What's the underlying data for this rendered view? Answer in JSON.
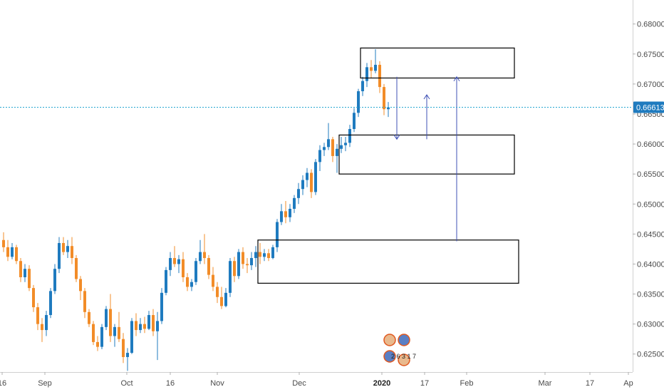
{
  "chart_data": {
    "type": "candlestick",
    "title": "",
    "xlabel": "",
    "ylabel": "",
    "ylim": [
      0.622,
      0.684
    ],
    "y_ticks": [
      "0.68000",
      "0.67500",
      "0.67000",
      "0.66500",
      "0.66000",
      "0.65500",
      "0.65000",
      "0.64500",
      "0.64000",
      "0.63500",
      "0.63000",
      "0.62500"
    ],
    "x_ticks": [
      "16",
      "Sep",
      "Oct",
      "16",
      "Nov",
      "Dec",
      "2020",
      "17",
      "Feb",
      "Mar",
      "17",
      "Ap"
    ],
    "current_price": 0.66613,
    "current_price_label": "0.66613",
    "colors": {
      "up": "#1f7bbf",
      "down": "#f28c28",
      "box": "#000000",
      "arrow": "#3f51b5",
      "price_line": "#26a6d1",
      "price_tag": "#1f7bbf"
    },
    "ohlc": [
      [
        0.644,
        0.6453,
        0.642,
        0.6428
      ],
      [
        0.6428,
        0.644,
        0.6405,
        0.6412
      ],
      [
        0.6412,
        0.6435,
        0.6408,
        0.6428
      ],
      [
        0.6428,
        0.6432,
        0.64,
        0.6405
      ],
      [
        0.6405,
        0.641,
        0.637,
        0.6378
      ],
      [
        0.6378,
        0.64,
        0.637,
        0.6392
      ],
      [
        0.6392,
        0.6398,
        0.6355,
        0.636
      ],
      [
        0.636,
        0.6365,
        0.632,
        0.6328
      ],
      [
        0.6328,
        0.6335,
        0.629,
        0.63
      ],
      [
        0.63,
        0.631,
        0.627,
        0.629
      ],
      [
        0.629,
        0.6322,
        0.628,
        0.6315
      ],
      [
        0.6315,
        0.636,
        0.631,
        0.6355
      ],
      [
        0.6355,
        0.64,
        0.635,
        0.6392
      ],
      [
        0.6392,
        0.6445,
        0.6385,
        0.6435
      ],
      [
        0.6435,
        0.6445,
        0.6415,
        0.642
      ],
      [
        0.642,
        0.644,
        0.641,
        0.643
      ],
      [
        0.643,
        0.6445,
        0.64,
        0.641
      ],
      [
        0.641,
        0.6415,
        0.637,
        0.6375
      ],
      [
        0.6375,
        0.638,
        0.634,
        0.6355
      ],
      [
        0.6355,
        0.636,
        0.631,
        0.632
      ],
      [
        0.632,
        0.6325,
        0.6295,
        0.63
      ],
      [
        0.63,
        0.6305,
        0.6265,
        0.627
      ],
      [
        0.627,
        0.628,
        0.6255,
        0.6262
      ],
      [
        0.6262,
        0.63,
        0.6258,
        0.6295
      ],
      [
        0.6295,
        0.633,
        0.629,
        0.6325
      ],
      [
        0.6325,
        0.635,
        0.627,
        0.628
      ],
      [
        0.628,
        0.63,
        0.6262,
        0.6295
      ],
      [
        0.6295,
        0.632,
        0.627,
        0.6275
      ],
      [
        0.6275,
        0.6285,
        0.6235,
        0.6245
      ],
      [
        0.6245,
        0.626,
        0.6222,
        0.6252
      ],
      [
        0.6252,
        0.631,
        0.625,
        0.6305
      ],
      [
        0.6305,
        0.6318,
        0.628,
        0.629
      ],
      [
        0.629,
        0.631,
        0.6285,
        0.63
      ],
      [
        0.63,
        0.6312,
        0.6285,
        0.6292
      ],
      [
        0.6292,
        0.6322,
        0.629,
        0.6315
      ],
      [
        0.6315,
        0.6325,
        0.628,
        0.6288
      ],
      [
        0.6288,
        0.632,
        0.624,
        0.6305
      ],
      [
        0.6305,
        0.636,
        0.63,
        0.6352
      ],
      [
        0.6352,
        0.6395,
        0.6348,
        0.639
      ],
      [
        0.639,
        0.642,
        0.638,
        0.641
      ],
      [
        0.641,
        0.643,
        0.6395,
        0.64
      ],
      [
        0.64,
        0.6415,
        0.6385,
        0.6408
      ],
      [
        0.6408,
        0.642,
        0.637,
        0.6378
      ],
      [
        0.6378,
        0.6385,
        0.6355,
        0.6362
      ],
      [
        0.6362,
        0.6375,
        0.6355,
        0.637
      ],
      [
        0.637,
        0.641,
        0.6365,
        0.6405
      ],
      [
        0.6405,
        0.644,
        0.64,
        0.642
      ],
      [
        0.642,
        0.645,
        0.64,
        0.641
      ],
      [
        0.641,
        0.6415,
        0.6375,
        0.6382
      ],
      [
        0.6382,
        0.6395,
        0.6355,
        0.6362
      ],
      [
        0.6362,
        0.637,
        0.6335,
        0.6345
      ],
      [
        0.6345,
        0.6362,
        0.6325,
        0.633
      ],
      [
        0.633,
        0.636,
        0.6328,
        0.6352
      ],
      [
        0.6352,
        0.641,
        0.6345,
        0.6405
      ],
      [
        0.6405,
        0.6412,
        0.637,
        0.638
      ],
      [
        0.638,
        0.6425,
        0.6375,
        0.642
      ],
      [
        0.642,
        0.6428,
        0.6392,
        0.64
      ],
      [
        0.64,
        0.641,
        0.6385,
        0.6398
      ],
      [
        0.6398,
        0.642,
        0.639,
        0.641
      ],
      [
        0.641,
        0.643,
        0.6395,
        0.642
      ],
      [
        0.642,
        0.6435,
        0.64,
        0.6412
      ],
      [
        0.6412,
        0.6425,
        0.6405,
        0.6418
      ],
      [
        0.6418,
        0.6425,
        0.6405,
        0.641
      ],
      [
        0.641,
        0.6432,
        0.6408,
        0.6428
      ],
      [
        0.6428,
        0.6475,
        0.642,
        0.647
      ],
      [
        0.647,
        0.65,
        0.6465,
        0.6488
      ],
      [
        0.6488,
        0.6505,
        0.6468,
        0.6478
      ],
      [
        0.6478,
        0.65,
        0.647,
        0.6492
      ],
      [
        0.6492,
        0.6515,
        0.6485,
        0.651
      ],
      [
        0.651,
        0.6535,
        0.65,
        0.6525
      ],
      [
        0.6525,
        0.6548,
        0.6515,
        0.654
      ],
      [
        0.654,
        0.656,
        0.6528,
        0.6552
      ],
      [
        0.6552,
        0.6558,
        0.651,
        0.652
      ],
      [
        0.652,
        0.6575,
        0.6515,
        0.657
      ],
      [
        0.657,
        0.6598,
        0.6555,
        0.659
      ],
      [
        0.659,
        0.6602,
        0.658,
        0.6595
      ],
      [
        0.6595,
        0.6635,
        0.659,
        0.6608
      ],
      [
        0.6608,
        0.6612,
        0.657,
        0.658
      ],
      [
        0.658,
        0.66,
        0.6552,
        0.6592
      ],
      [
        0.6592,
        0.6612,
        0.6585,
        0.6598
      ],
      [
        0.6598,
        0.6612,
        0.6588,
        0.6602
      ],
      [
        0.6602,
        0.6632,
        0.6595,
        0.6625
      ],
      [
        0.6625,
        0.666,
        0.662,
        0.6652
      ],
      [
        0.6652,
        0.6692,
        0.6645,
        0.6688
      ],
      [
        0.6688,
        0.6712,
        0.668,
        0.6705
      ],
      [
        0.6705,
        0.6735,
        0.6695,
        0.6728
      ],
      [
        0.6728,
        0.674,
        0.671,
        0.6722
      ],
      [
        0.6722,
        0.6758,
        0.6718,
        0.6732
      ],
      [
        0.6732,
        0.6738,
        0.6685,
        0.6695
      ],
      [
        0.6695,
        0.67,
        0.6648,
        0.6658
      ],
      [
        0.6658,
        0.667,
        0.6645,
        0.6661
      ]
    ],
    "zones": [
      {
        "name": "top-zone",
        "x_from_candle": 84,
        "x_to_candle": 119,
        "y_top": 0.676,
        "y_bottom": 0.671
      },
      {
        "name": "mid-zone",
        "x_from_candle": 79,
        "x_to_candle": 119,
        "y_top": 0.6615,
        "y_bottom": 0.655
      },
      {
        "name": "low-zone",
        "x_from_candle": 60,
        "x_to_candle": 120,
        "y_top": 0.644,
        "y_bottom": 0.6368
      }
    ],
    "arrows": [
      {
        "name": "down-arrow",
        "x_candle": 92,
        "y_from": 0.6712,
        "y_to": 0.6608
      },
      {
        "name": "up-arrow-short",
        "x_candle": 99,
        "y_from": 0.6608,
        "y_to": 0.6682
      },
      {
        "name": "up-arrow-long",
        "x_candle": 106,
        "y_from": 0.6438,
        "y_to": 0.6712
      }
    ]
  },
  "logo": {
    "caption": "2 6 3 1 7"
  }
}
